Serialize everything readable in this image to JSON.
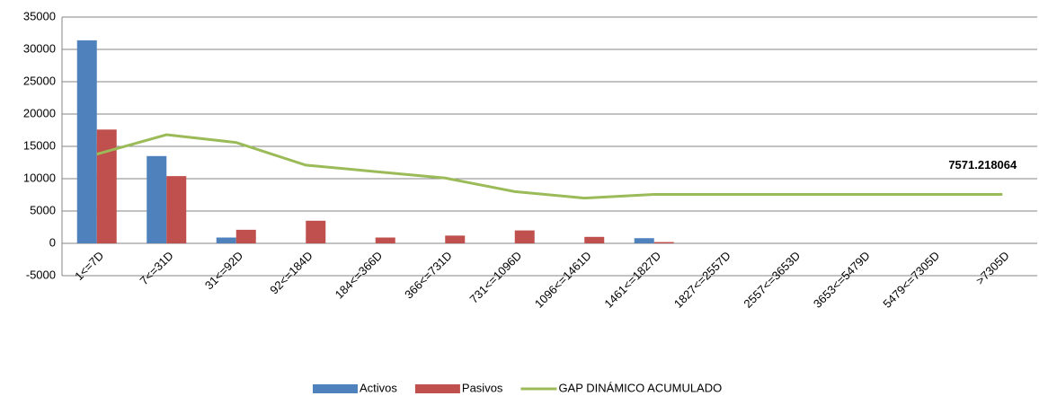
{
  "chart_data": {
    "type": "bar",
    "categories": [
      "1<=7D",
      "7<=31D",
      "31<=92D",
      "92<=184D",
      "184<=366D",
      "366<=731D",
      "731<=1096D",
      "1096<=1461D",
      "1461<=1827D",
      "1827<=2557D",
      "2557<=3653D",
      "3653<=5479D",
      "5479<=7305D",
      ">7305D"
    ],
    "series": [
      {
        "name": "Activos",
        "type": "bar",
        "color": "#4f81bd",
        "values": [
          31400,
          13500,
          900,
          0,
          0,
          0,
          0,
          0,
          800,
          0,
          0,
          0,
          0,
          0
        ]
      },
      {
        "name": "Pasivos",
        "type": "bar",
        "color": "#c0504d",
        "values": [
          17600,
          10400,
          2100,
          3500,
          900,
          1200,
          2000,
          1000,
          200,
          0,
          0,
          0,
          0,
          0
        ]
      },
      {
        "name": "GAP DINÁMICO ACUMULADO",
        "type": "line",
        "color": "#9bbb59",
        "values": [
          13800,
          16800,
          15600,
          12100,
          11100,
          10100,
          8000,
          7000,
          7571.218064,
          7571.218064,
          7571.218064,
          7571.218064,
          7571.218064,
          7571.218064
        ]
      }
    ],
    "ylim": [
      -5000,
      35000
    ],
    "yticks": [
      -5000,
      0,
      5000,
      10000,
      15000,
      20000,
      25000,
      30000,
      35000
    ],
    "grid": true,
    "legend": "bottom"
  }
}
